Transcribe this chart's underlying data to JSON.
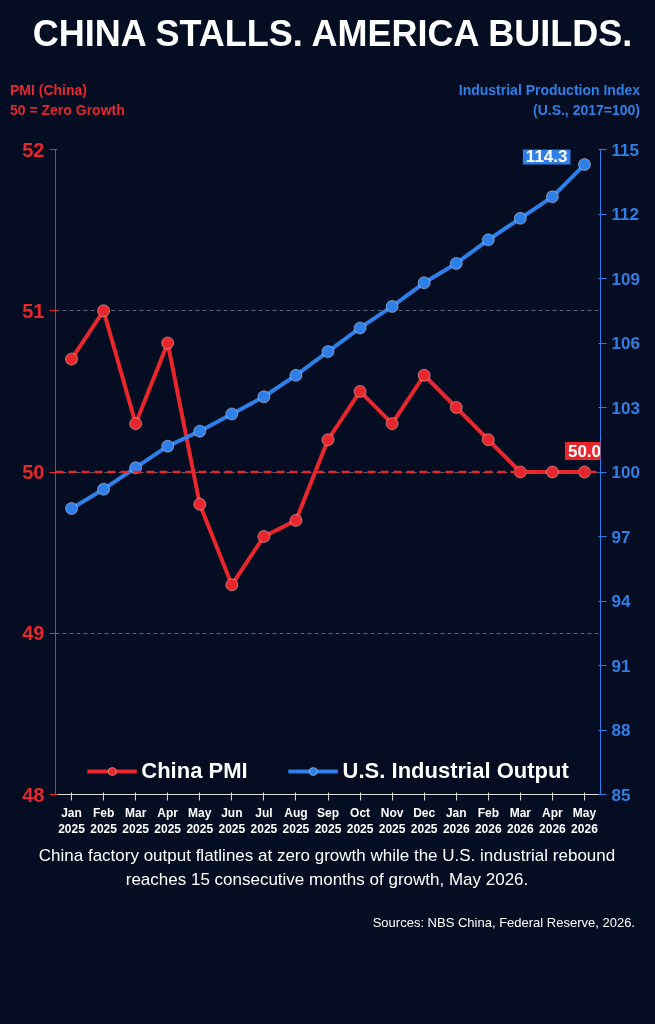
{
  "chart_data": {
    "type": "line",
    "title": "CHINA STALLS. AMERICA BUILDS.",
    "ylabel": "PMI (China)\n50 = Zero Growth",
    "y2label": "Industrial Production Index\n(U.S., 2017=100)",
    "categories": [
      "Jan\n2025",
      "Feb\n2025",
      "Mar\n2025",
      "Apr\n2025",
      "May\n2025",
      "Jun\n2025",
      "Jul\n2025",
      "Aug\n2025",
      "Sep\n2025",
      "Oct\n2025",
      "Nov\n2025",
      "Dec\n2025",
      "Jan\n2026",
      "Feb\n2026",
      "Mar\n2026",
      "Apr\n2026",
      "May\n2026"
    ],
    "series": [
      {
        "name": "China PMI",
        "color": "#e8262b",
        "values": [
          50.7,
          51.0,
          50.3,
          50.8,
          49.8,
          49.3,
          49.6,
          49.7,
          50.2,
          50.5,
          50.3,
          50.6,
          50.4,
          50.2,
          50.0,
          50.0,
          50.0
        ],
        "value_labels": [
          null,
          null,
          null,
          null,
          null,
          null,
          null,
          null,
          null,
          null,
          null,
          null,
          null,
          null,
          null,
          null,
          "50.0"
        ]
      },
      {
        "name": "U.S. Industrial Output",
        "color": "#2f7fe8",
        "axis": "y2",
        "values": [
          98.3,
          99.2,
          100.2,
          101.2,
          101.9,
          102.7,
          103.5,
          104.5,
          105.6,
          106.7,
          107.7,
          108.8,
          109.7,
          110.8,
          111.8,
          112.8,
          114.3
        ],
        "value_labels": [
          null,
          null,
          null,
          null,
          null,
          null,
          null,
          null,
          null,
          null,
          null,
          null,
          null,
          null,
          null,
          null,
          "114.3"
        ]
      }
    ],
    "ylim": [
      48,
      52
    ],
    "yticks": [
      48,
      49,
      50,
      51,
      52
    ],
    "y2lim": [
      85,
      115
    ],
    "y2ticks": [
      85,
      88,
      91,
      94,
      97,
      100,
      103,
      106,
      109,
      112,
      115
    ],
    "ref_lines": [
      {
        "axis": "y",
        "value": 50,
        "color": "#e8262b",
        "line_style": "dashed"
      }
    ],
    "grid": "y",
    "legend": "bottom",
    "marker": "circle",
    "line_style": "solid",
    "annotations": [
      "China factory output flatlines at zero growth while the U.S. industrial rebound reaches 15 consecutive months of growth, May 2026.",
      "Sources: NBS China, Federal Reserve, 2026."
    ]
  }
}
